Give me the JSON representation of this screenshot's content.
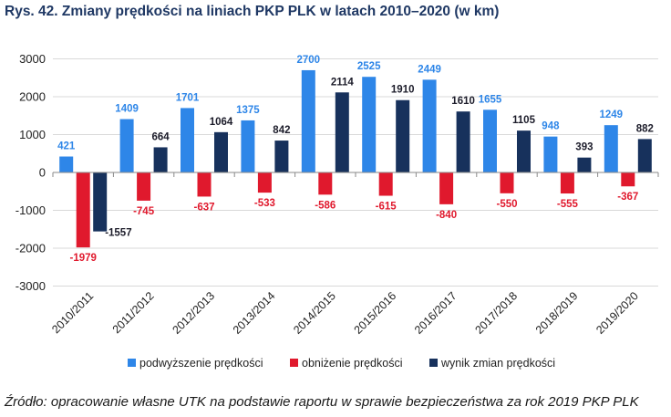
{
  "title": "Rys. 42. Zmiany prędkości na liniach PKP PLK w latach 2010–2020 (w km)",
  "source": "Źródło: opracowanie własne UTK na podstawie raportu w sprawie bezpieczeństwa za rok 2019 PKP PLK",
  "colors": {
    "increase": "#2e86e8",
    "decrease": "#e0192d",
    "net": "#17315c",
    "axis": "#8a8a8a",
    "grid": "#d9d9d9"
  },
  "chart_data": {
    "type": "bar",
    "categories": [
      "2010/2011",
      "2011/2012",
      "2012/2013",
      "2013/2014",
      "2014/2015",
      "2015/2016",
      "2016/2017",
      "2017/2018",
      "2018/2019",
      "2019/2020"
    ],
    "series": [
      {
        "name": "podwyższenie prędkości",
        "values": [
          421,
          1409,
          1701,
          1375,
          2700,
          2525,
          2449,
          1655,
          948,
          1249
        ]
      },
      {
        "name": "obniżenie prędkości",
        "values": [
          -1979,
          -745,
          -637,
          -533,
          -586,
          -615,
          -840,
          -550,
          -555,
          -367
        ]
      },
      {
        "name": "wynik zmian prędkości",
        "values": [
          -1557,
          664,
          1064,
          842,
          2114,
          1910,
          1610,
          1105,
          393,
          882
        ]
      }
    ],
    "y_ticks": [
      "3000",
      "2000",
      "1000",
      "0",
      "-1000",
      "-2000",
      "-3000"
    ],
    "ylim": [
      -3000,
      3000
    ],
    "grid": "horizontal",
    "legend_position": "bottom"
  }
}
